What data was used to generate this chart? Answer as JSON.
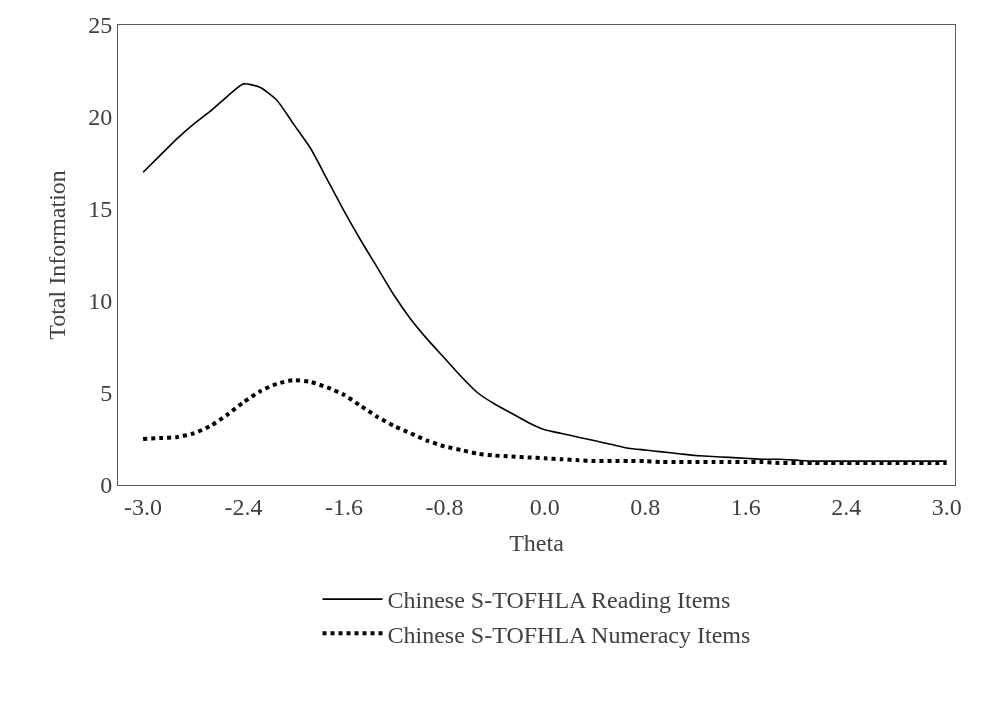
{
  "chart_data": {
    "type": "line",
    "xlabel": "Theta",
    "ylabel": "Total Information",
    "categories": [
      "-3.0",
      null,
      null,
      null,
      null,
      null,
      "-2.4",
      null,
      null,
      null,
      null,
      null,
      "-1.6",
      null,
      null,
      null,
      null,
      null,
      "-0.8",
      null,
      null,
      null,
      null,
      null,
      "0.0",
      null,
      null,
      null,
      null,
      null,
      "0.8",
      null,
      null,
      null,
      null,
      null,
      "1.6",
      null,
      null,
      null,
      null,
      null,
      "2.4",
      null,
      null,
      null,
      null,
      null,
      "3.0"
    ],
    "series": [
      {
        "name": "Chinese S-TOFHLA Reading Items",
        "color": "#000000",
        "line_style": "solid",
        "values": [
          17.0,
          17.9,
          18.8,
          19.6,
          20.3,
          21.1,
          21.8,
          21.6,
          20.9,
          19.6,
          18.3,
          16.6,
          14.9,
          13.3,
          11.8,
          10.3,
          9.0,
          7.9,
          6.9,
          5.9,
          5.0,
          4.4,
          3.9,
          3.4,
          3.0,
          2.8,
          2.6,
          2.4,
          2.2,
          2.0,
          1.9,
          1.8,
          1.7,
          1.6,
          1.55,
          1.5,
          1.45,
          1.4,
          1.4,
          1.35,
          1.3,
          1.3,
          1.3,
          1.3,
          1.3,
          1.3,
          1.3,
          1.3,
          1.3
        ]
      },
      {
        "name": "Chinese S-TOFHLA Numeracy Items",
        "color": "#000000",
        "line_style": "dotted",
        "values": [
          2.5,
          2.55,
          2.6,
          2.8,
          3.2,
          3.8,
          4.5,
          5.1,
          5.5,
          5.7,
          5.6,
          5.3,
          4.9,
          4.3,
          3.7,
          3.2,
          2.8,
          2.4,
          2.1,
          1.9,
          1.7,
          1.6,
          1.55,
          1.5,
          1.45,
          1.4,
          1.35,
          1.3,
          1.3,
          1.3,
          1.3,
          1.25,
          1.25,
          1.25,
          1.25,
          1.25,
          1.25,
          1.25,
          1.2,
          1.2,
          1.2,
          1.2,
          1.2,
          1.2,
          1.2,
          1.2,
          1.2,
          1.2,
          1.2
        ]
      }
    ],
    "ylim": [
      0,
      25
    ],
    "yticks": [
      0,
      5,
      10,
      15,
      20,
      25
    ],
    "legend": "bottom",
    "marker": "none"
  }
}
